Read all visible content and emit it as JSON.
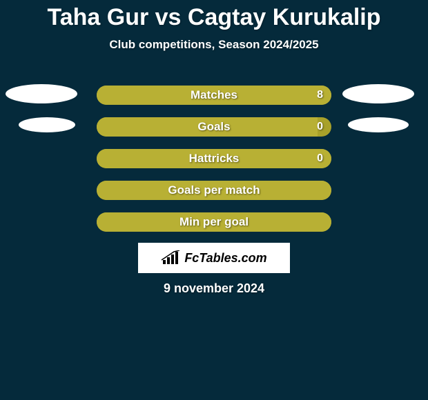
{
  "background_color": "#052a3b",
  "title": {
    "text": "Taha Gur vs Cagtay Kurukalip",
    "color": "#ffffff",
    "fontsize": 34
  },
  "subtitle": {
    "text": "Club competitions, Season 2024/2025",
    "color": "#ffffff",
    "fontsize": 17
  },
  "ellipse_color": "#ffffff",
  "bars": {
    "track_color": "#a8a12a",
    "fill_color": "#b8b034",
    "border_radius": 14,
    "label_color": "#ffffff",
    "value_color": "#ffffff",
    "label_fontsize": 17,
    "value_fontsize": 16,
    "items": [
      {
        "label": "Matches",
        "value": "8",
        "fill_pct": 100
      },
      {
        "label": "Goals",
        "value": "0",
        "fill_pct": 94
      },
      {
        "label": "Hattricks",
        "value": "0",
        "fill_pct": 100
      },
      {
        "label": "Goals per match",
        "value": "",
        "fill_pct": 100
      },
      {
        "label": "Min per goal",
        "value": "",
        "fill_pct": 100
      }
    ]
  },
  "brand": {
    "text": "FcTables.com",
    "box_bg": "#ffffff",
    "text_color": "#000000",
    "fontsize": 18,
    "icon_color": "#000000"
  },
  "date": {
    "text": "9 november 2024",
    "color": "#ffffff",
    "fontsize": 18
  }
}
